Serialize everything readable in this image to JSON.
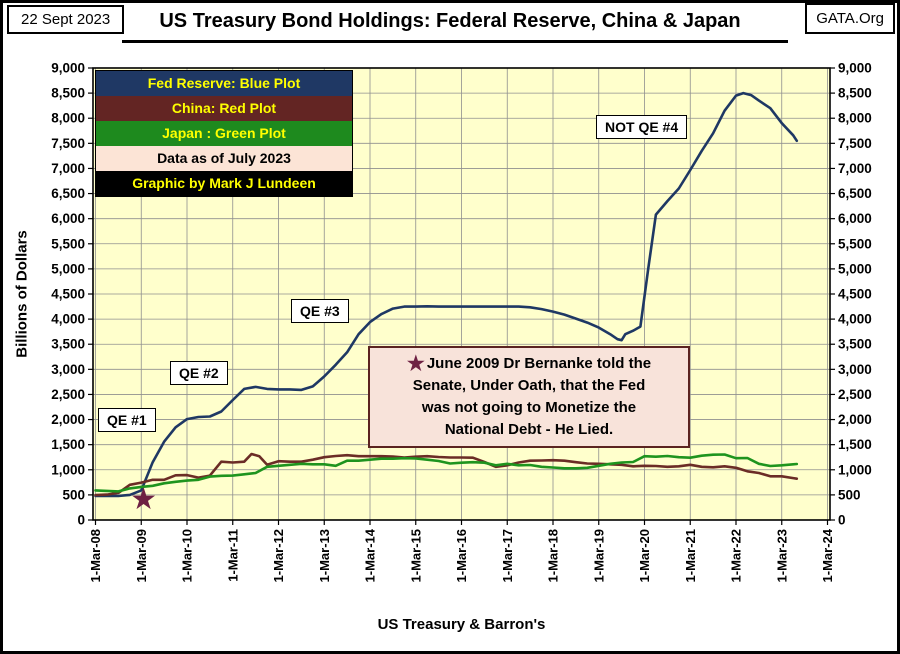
{
  "header": {
    "date": "22 Sept 2023",
    "site": "GATA.Org",
    "title": "US Treasury Bond Holdings: Federal Reserve, China & Japan"
  },
  "axes": {
    "y_label": "Billions of Dollars",
    "x_source_label": "US Treasury & Barron's"
  },
  "icons": {
    "star": "★"
  },
  "legend": {
    "rows": [
      {
        "label": "Fed Reserve: Blue Plot",
        "bg": "#1F3864",
        "fg": "#FFFF00"
      },
      {
        "label": "China: Red Plot",
        "bg": "#632523",
        "fg": "#FFFF00"
      },
      {
        "label": "Japan : Green Plot",
        "bg": "#1E8A1E",
        "fg": "#FFFF00"
      },
      {
        "label": "Data as of July 2023",
        "bg": "#FCE4D6",
        "fg": "#000000"
      },
      {
        "label": "Graphic by Mark J Lundeen",
        "bg": "#000000",
        "fg": "#FFFF00"
      }
    ]
  },
  "annotations": {
    "qe1": "QE #1",
    "qe2": "QE #2",
    "qe3": "QE #3",
    "qe4": "NOT QE #4",
    "note_lines": [
      "June 2009 Dr Bernanke told the",
      "Senate, Under Oath, that the Fed",
      "was not going to Monetize the",
      "National Debt - He Lied."
    ]
  },
  "chart_data": {
    "type": "line",
    "title": "US Treasury Bond Holdings: Federal Reserve, China & Japan",
    "xlabel": "US Treasury & Barron's",
    "ylabel": "Billions of Dollars",
    "ylim": [
      0,
      9000
    ],
    "y_tick_step": 500,
    "x_range": [
      2008.17,
      2024.17
    ],
    "x_ticks": [
      "1-Mar-08",
      "1-Mar-09",
      "1-Mar-10",
      "1-Mar-11",
      "1-Mar-12",
      "1-Mar-13",
      "1-Mar-14",
      "1-Mar-15",
      "1-Mar-16",
      "1-Mar-17",
      "1-Mar-18",
      "1-Mar-19",
      "1-Mar-20",
      "1-Mar-21",
      "1-Mar-22",
      "1-Mar-23",
      "1-Mar-24"
    ],
    "grid": true,
    "plot_background": "#FFFFCC",
    "legend_position": "top-left",
    "series": [
      {
        "name": "Federal Reserve",
        "legend_label": "Fed Reserve: Blue Plot",
        "color": "#1F3864",
        "points": [
          [
            2008.17,
            480
          ],
          [
            2008.42,
            478
          ],
          [
            2008.67,
            480
          ],
          [
            2008.92,
            500
          ],
          [
            2009.17,
            590
          ],
          [
            2009.42,
            1150
          ],
          [
            2009.67,
            1560
          ],
          [
            2009.92,
            1845
          ],
          [
            2010.17,
            2010
          ],
          [
            2010.42,
            2050
          ],
          [
            2010.67,
            2060
          ],
          [
            2010.92,
            2160
          ],
          [
            2011.17,
            2390
          ],
          [
            2011.42,
            2610
          ],
          [
            2011.67,
            2650
          ],
          [
            2011.92,
            2610
          ],
          [
            2012.17,
            2600
          ],
          [
            2012.42,
            2600
          ],
          [
            2012.67,
            2590
          ],
          [
            2012.92,
            2660
          ],
          [
            2013.17,
            2860
          ],
          [
            2013.42,
            3090
          ],
          [
            2013.67,
            3340
          ],
          [
            2013.92,
            3700
          ],
          [
            2014.17,
            3940
          ],
          [
            2014.42,
            4100
          ],
          [
            2014.67,
            4210
          ],
          [
            2014.92,
            4250
          ],
          [
            2015.17,
            4250
          ],
          [
            2015.42,
            4255
          ],
          [
            2015.67,
            4250
          ],
          [
            2015.92,
            4250
          ],
          [
            2016.17,
            4250
          ],
          [
            2016.42,
            4250
          ],
          [
            2016.67,
            4250
          ],
          [
            2016.92,
            4250
          ],
          [
            2017.17,
            4250
          ],
          [
            2017.42,
            4250
          ],
          [
            2017.67,
            4235
          ],
          [
            2017.92,
            4200
          ],
          [
            2018.17,
            4150
          ],
          [
            2018.42,
            4090
          ],
          [
            2018.67,
            4010
          ],
          [
            2018.92,
            3930
          ],
          [
            2019.17,
            3830
          ],
          [
            2019.42,
            3700
          ],
          [
            2019.58,
            3600
          ],
          [
            2019.67,
            3580
          ],
          [
            2019.75,
            3700
          ],
          [
            2019.92,
            3770
          ],
          [
            2020.08,
            3850
          ],
          [
            2020.25,
            5000
          ],
          [
            2020.42,
            6080
          ],
          [
            2020.67,
            6350
          ],
          [
            2020.92,
            6600
          ],
          [
            2021.17,
            6970
          ],
          [
            2021.42,
            7350
          ],
          [
            2021.67,
            7700
          ],
          [
            2021.92,
            8150
          ],
          [
            2022.17,
            8450
          ],
          [
            2022.33,
            8500
          ],
          [
            2022.5,
            8460
          ],
          [
            2022.67,
            8350
          ],
          [
            2022.92,
            8200
          ],
          [
            2023.17,
            7900
          ],
          [
            2023.42,
            7660
          ],
          [
            2023.5,
            7550
          ]
        ]
      },
      {
        "name": "China",
        "legend_label": "China: Red Plot",
        "color": "#6B2C26",
        "points": [
          [
            2008.17,
            495
          ],
          [
            2008.42,
            505
          ],
          [
            2008.67,
            540
          ],
          [
            2008.92,
            700
          ],
          [
            2009.17,
            745
          ],
          [
            2009.42,
            800
          ],
          [
            2009.67,
            800
          ],
          [
            2009.92,
            890
          ],
          [
            2010.17,
            895
          ],
          [
            2010.42,
            845
          ],
          [
            2010.67,
            885
          ],
          [
            2010.92,
            1160
          ],
          [
            2011.17,
            1145
          ],
          [
            2011.42,
            1160
          ],
          [
            2011.58,
            1315
          ],
          [
            2011.75,
            1270
          ],
          [
            2011.92,
            1100
          ],
          [
            2012.17,
            1170
          ],
          [
            2012.42,
            1160
          ],
          [
            2012.67,
            1160
          ],
          [
            2012.92,
            1200
          ],
          [
            2013.17,
            1250
          ],
          [
            2013.42,
            1275
          ],
          [
            2013.67,
            1290
          ],
          [
            2013.92,
            1270
          ],
          [
            2014.17,
            1270
          ],
          [
            2014.42,
            1270
          ],
          [
            2014.67,
            1265
          ],
          [
            2014.92,
            1245
          ],
          [
            2015.17,
            1260
          ],
          [
            2015.42,
            1270
          ],
          [
            2015.67,
            1255
          ],
          [
            2015.92,
            1245
          ],
          [
            2016.17,
            1245
          ],
          [
            2016.42,
            1240
          ],
          [
            2016.67,
            1155
          ],
          [
            2016.92,
            1060
          ],
          [
            2017.17,
            1090
          ],
          [
            2017.42,
            1145
          ],
          [
            2017.67,
            1180
          ],
          [
            2017.92,
            1185
          ],
          [
            2018.17,
            1190
          ],
          [
            2018.42,
            1180
          ],
          [
            2018.67,
            1150
          ],
          [
            2018.92,
            1125
          ],
          [
            2019.17,
            1120
          ],
          [
            2019.42,
            1110
          ],
          [
            2019.67,
            1100
          ],
          [
            2019.92,
            1070
          ],
          [
            2020.17,
            1080
          ],
          [
            2020.42,
            1075
          ],
          [
            2020.67,
            1060
          ],
          [
            2020.92,
            1070
          ],
          [
            2021.17,
            1100
          ],
          [
            2021.42,
            1060
          ],
          [
            2021.67,
            1050
          ],
          [
            2021.92,
            1070
          ],
          [
            2022.17,
            1040
          ],
          [
            2022.42,
            970
          ],
          [
            2022.67,
            935
          ],
          [
            2022.92,
            870
          ],
          [
            2023.17,
            870
          ],
          [
            2023.42,
            835
          ],
          [
            2023.5,
            822
          ]
        ]
      },
      {
        "name": "Japan",
        "legend_label": "Japan : Green Plot",
        "color": "#1E941E",
        "points": [
          [
            2008.17,
            590
          ],
          [
            2008.42,
            580
          ],
          [
            2008.67,
            570
          ],
          [
            2008.92,
            630
          ],
          [
            2009.17,
            660
          ],
          [
            2009.42,
            680
          ],
          [
            2009.67,
            730
          ],
          [
            2009.92,
            760
          ],
          [
            2010.17,
            785
          ],
          [
            2010.42,
            800
          ],
          [
            2010.67,
            865
          ],
          [
            2010.92,
            880
          ],
          [
            2011.17,
            885
          ],
          [
            2011.42,
            910
          ],
          [
            2011.67,
            935
          ],
          [
            2011.92,
            1060
          ],
          [
            2012.17,
            1080
          ],
          [
            2012.42,
            1100
          ],
          [
            2012.67,
            1120
          ],
          [
            2012.92,
            1110
          ],
          [
            2013.17,
            1110
          ],
          [
            2013.42,
            1080
          ],
          [
            2013.67,
            1180
          ],
          [
            2013.92,
            1180
          ],
          [
            2014.17,
            1200
          ],
          [
            2014.42,
            1220
          ],
          [
            2014.67,
            1220
          ],
          [
            2014.92,
            1230
          ],
          [
            2015.17,
            1225
          ],
          [
            2015.42,
            1200
          ],
          [
            2015.67,
            1175
          ],
          [
            2015.92,
            1125
          ],
          [
            2016.17,
            1140
          ],
          [
            2016.42,
            1150
          ],
          [
            2016.67,
            1140
          ],
          [
            2016.92,
            1090
          ],
          [
            2017.17,
            1120
          ],
          [
            2017.42,
            1090
          ],
          [
            2017.67,
            1095
          ],
          [
            2017.92,
            1060
          ],
          [
            2018.17,
            1045
          ],
          [
            2018.42,
            1030
          ],
          [
            2018.67,
            1030
          ],
          [
            2018.92,
            1040
          ],
          [
            2019.17,
            1080
          ],
          [
            2019.42,
            1120
          ],
          [
            2019.67,
            1145
          ],
          [
            2019.92,
            1155
          ],
          [
            2020.17,
            1270
          ],
          [
            2020.42,
            1260
          ],
          [
            2020.67,
            1275
          ],
          [
            2020.92,
            1250
          ],
          [
            2021.17,
            1240
          ],
          [
            2021.42,
            1280
          ],
          [
            2021.67,
            1300
          ],
          [
            2021.92,
            1305
          ],
          [
            2022.17,
            1230
          ],
          [
            2022.42,
            1235
          ],
          [
            2022.67,
            1120
          ],
          [
            2022.92,
            1075
          ],
          [
            2023.17,
            1090
          ],
          [
            2023.42,
            1110
          ],
          [
            2023.5,
            1115
          ]
        ]
      }
    ],
    "star_marker": {
      "x": 2009.22,
      "y": 420,
      "color": "#6E2143"
    }
  }
}
